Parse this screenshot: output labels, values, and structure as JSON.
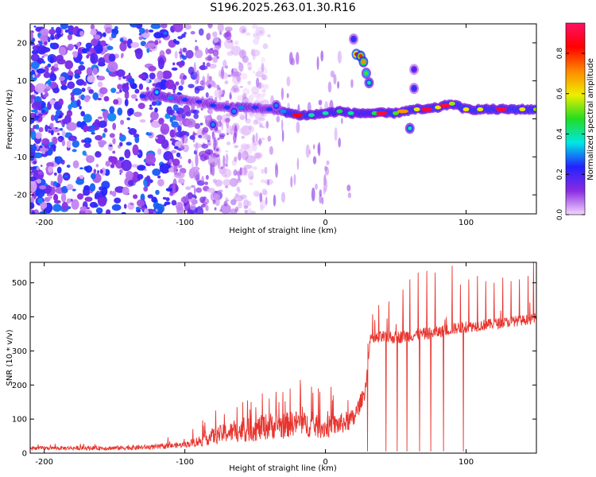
{
  "title": "S196.2025.263.01.30.R16",
  "colors": {
    "line": "#e8342e",
    "axis": "#000000",
    "background": "#ffffff"
  },
  "chart_data": [
    {
      "type": "heatmap",
      "title": "",
      "xlabel": "Height of straight line (km)",
      "ylabel": "Frequency (Hz)",
      "xlim": [
        -210,
        150
      ],
      "ylim": [
        -25,
        25
      ],
      "x_ticks": [
        -200,
        -100,
        0,
        100
      ],
      "y_ticks": [
        -20,
        -10,
        0,
        10,
        20
      ],
      "colorbar": {
        "label": "Normalized spectral amplitude",
        "range": [
          0,
          0.95
        ],
        "ticks": [
          0.0,
          0.2,
          0.4,
          0.6,
          0.8
        ],
        "tick_labels": [
          "0.0",
          "0.2",
          "0.4",
          "0.6",
          "0.8"
        ],
        "stops": [
          "#f4d6ff",
          "#8a2be2",
          "#2222ff",
          "#00e6e6",
          "#22dd22",
          "#eeee00",
          "#ff8800",
          "#ff0000",
          "#ff1166"
        ]
      },
      "ridge": [
        {
          "x": -130,
          "y": 6.0,
          "amp": 0.25
        },
        {
          "x": -120,
          "y": 6.0,
          "amp": 0.3
        },
        {
          "x": -110,
          "y": 5.5,
          "amp": 0.3
        },
        {
          "x": -100,
          "y": 5.0,
          "amp": 0.25
        },
        {
          "x": -90,
          "y": 4.5,
          "amp": 0.2
        },
        {
          "x": -80,
          "y": 3.5,
          "amp": 0.25
        },
        {
          "x": -70,
          "y": 3.0,
          "amp": 0.25
        },
        {
          "x": -60,
          "y": 3.0,
          "amp": 0.3
        },
        {
          "x": -50,
          "y": 3.0,
          "amp": 0.25
        },
        {
          "x": -40,
          "y": 2.5,
          "amp": 0.25
        },
        {
          "x": -30,
          "y": 2.0,
          "amp": 0.3
        },
        {
          "x": -20,
          "y": 1.0,
          "amp": 0.85
        },
        {
          "x": -10,
          "y": 1.0,
          "amp": 0.4
        },
        {
          "x": 0,
          "y": 1.5,
          "amp": 0.4
        },
        {
          "x": 10,
          "y": 2.0,
          "amp": 0.45
        },
        {
          "x": 18,
          "y": 1.5,
          "amp": 0.4
        },
        {
          "x": 35,
          "y": 1.5,
          "amp": 0.45
        },
        {
          "x": 40,
          "y": 1.5,
          "amp": 0.9
        },
        {
          "x": 50,
          "y": 1.5,
          "amp": 0.5
        },
        {
          "x": 55,
          "y": 2.0,
          "amp": 0.7
        },
        {
          "x": 65,
          "y": 2.5,
          "amp": 0.6
        },
        {
          "x": 72,
          "y": 2.5,
          "amp": 0.9
        },
        {
          "x": 80,
          "y": 3.0,
          "amp": 0.6
        },
        {
          "x": 85,
          "y": 3.5,
          "amp": 0.9
        },
        {
          "x": 90,
          "y": 4.0,
          "amp": 0.55
        },
        {
          "x": 100,
          "y": 2.5,
          "amp": 0.6
        },
        {
          "x": 110,
          "y": 2.5,
          "amp": 0.6
        },
        {
          "x": 125,
          "y": 2.5,
          "amp": 0.9
        },
        {
          "x": 140,
          "y": 2.5,
          "amp": 0.6
        },
        {
          "x": 150,
          "y": 2.5,
          "amp": 0.55
        }
      ],
      "blobs": [
        {
          "x": 22,
          "y": 17.0,
          "amp": 0.9
        },
        {
          "x": 25,
          "y": 16.5,
          "amp": 0.8
        },
        {
          "x": 27,
          "y": 15.0,
          "amp": 0.7
        },
        {
          "x": 29,
          "y": 12.0,
          "amp": 0.5
        },
        {
          "x": 31,
          "y": 9.5,
          "amp": 0.4
        },
        {
          "x": 20,
          "y": 21.0,
          "amp": 0.25
        },
        {
          "x": 60,
          "y": -2.5,
          "amp": 0.4
        },
        {
          "x": 63,
          "y": 13.0,
          "amp": 0.2
        },
        {
          "x": 63,
          "y": 8.0,
          "amp": 0.25
        },
        {
          "x": -80,
          "y": -1.5,
          "amp": 0.3
        },
        {
          "x": -65,
          "y": 2.0,
          "amp": 0.3
        },
        {
          "x": -35,
          "y": 3.5,
          "amp": 0.3
        },
        {
          "x": -120,
          "y": 7.0,
          "amp": 0.35
        }
      ],
      "noise_region": {
        "x_min": -210,
        "x_max": -80,
        "density": "high",
        "amp_range": [
          0.02,
          0.3
        ]
      }
    },
    {
      "type": "line",
      "title": "",
      "xlabel": "Height of straight line (km)",
      "ylabel": "SNR (10 * v/v)",
      "xlim": [
        -210,
        150
      ],
      "ylim": [
        0,
        560
      ],
      "x_ticks": [
        -200,
        -100,
        0,
        100
      ],
      "y_ticks": [
        0,
        100,
        200,
        300,
        400,
        500
      ],
      "series": [
        {
          "name": "SNR",
          "baseline": {
            "x": [
              -210,
              -180,
              -150,
              -120,
              -100,
              -90,
              -80,
              -70,
              -60,
              -50,
              -40,
              -30,
              -20,
              -10,
              0,
              10,
              20,
              28,
              32,
              40,
              50,
              60,
              70,
              80,
              90,
              100,
              110,
              120,
              130,
              140,
              150
            ],
            "y": [
              15,
              15,
              15,
              18,
              25,
              35,
              50,
              60,
              65,
              70,
              80,
              80,
              90,
              80,
              75,
              85,
              100,
              180,
              330,
              340,
              340,
              345,
              350,
              355,
              365,
              370,
              375,
              380,
              385,
              390,
              395
            ]
          },
          "noise_amplitude": {
            "x": [
              -210,
              -100,
              -80,
              -40,
              20,
              30,
              150
            ],
            "y": [
              5,
              8,
              25,
              40,
              30,
              20,
              15
            ]
          },
          "spikes_up": [
            {
              "x": -78,
              "y": 125
            },
            {
              "x": -72,
              "y": 115
            },
            {
              "x": -63,
              "y": 135
            },
            {
              "x": -58,
              "y": 105
            },
            {
              "x": -53,
              "y": 150
            },
            {
              "x": -45,
              "y": 175
            },
            {
              "x": -40,
              "y": 160
            },
            {
              "x": -33,
              "y": 150
            },
            {
              "x": -25,
              "y": 190
            },
            {
              "x": -18,
              "y": 215
            },
            {
              "x": -10,
              "y": 195
            },
            {
              "x": -5,
              "y": 190
            },
            {
              "x": 5,
              "y": 155
            },
            {
              "x": 25,
              "y": 135
            },
            {
              "x": 33,
              "y": 350
            },
            {
              "x": 38,
              "y": 435
            },
            {
              "x": 45,
              "y": 445
            },
            {
              "x": 55,
              "y": 480
            },
            {
              "x": 60,
              "y": 510
            },
            {
              "x": 66,
              "y": 530
            },
            {
              "x": 72,
              "y": 535
            },
            {
              "x": 78,
              "y": 530
            },
            {
              "x": 84,
              "y": 525
            },
            {
              "x": 90,
              "y": 550
            },
            {
              "x": 96,
              "y": 495
            },
            {
              "x": 102,
              "y": 510
            },
            {
              "x": 108,
              "y": 520
            },
            {
              "x": 114,
              "y": 505
            },
            {
              "x": 120,
              "y": 500
            },
            {
              "x": 126,
              "y": 515
            },
            {
              "x": 132,
              "y": 505
            },
            {
              "x": 138,
              "y": 510
            },
            {
              "x": 144,
              "y": 520
            },
            {
              "x": 148,
              "y": 565
            }
          ],
          "dropouts": [
            {
              "x": 30,
              "y": 5
            },
            {
              "x": 43,
              "y": 5
            },
            {
              "x": 51,
              "y": 5
            },
            {
              "x": 58,
              "y": 5
            },
            {
              "x": 67,
              "y": 5
            },
            {
              "x": 75,
              "y": 5
            },
            {
              "x": 84,
              "y": 5
            },
            {
              "x": 98,
              "y": 5
            }
          ]
        }
      ]
    }
  ]
}
